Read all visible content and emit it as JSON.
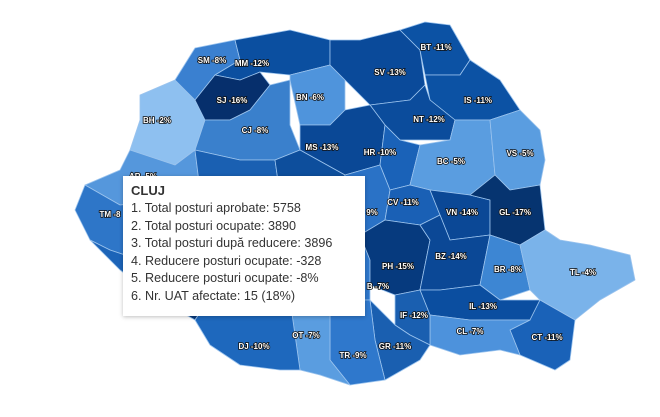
{
  "map": {
    "counties": [
      {
        "code": "BH",
        "label": "BH -2%",
        "color": "#8ec0f0"
      },
      {
        "code": "SM",
        "label": "SM -8%",
        "color": "#3a80d0"
      },
      {
        "code": "MM",
        "label": "MM -12%",
        "color": "#0b4fa0"
      },
      {
        "code": "SJ",
        "label": "SJ -16%",
        "color": "#062f6c"
      },
      {
        "code": "CJ",
        "label": "CJ -8%",
        "color": "#3a80cc"
      },
      {
        "code": "BN",
        "label": "BN -6%",
        "color": "#4f94dc"
      },
      {
        "code": "SV",
        "label": "SV -13%",
        "color": "#0a4a9a"
      },
      {
        "code": "BT",
        "label": "BT -11%",
        "color": "#0c52a4"
      },
      {
        "code": "IS",
        "label": "IS -11%",
        "color": "#0c52a4"
      },
      {
        "code": "NT",
        "label": "NT -12%",
        "color": "#0b4c9c"
      },
      {
        "code": "MS",
        "label": "MS -13%",
        "color": "#0a4896"
      },
      {
        "code": "HR",
        "label": "HR -10%",
        "color": "#1a62b8"
      },
      {
        "code": "BC",
        "label": "BC -5%",
        "color": "#5a9de0"
      },
      {
        "code": "VS",
        "label": "VS -5%",
        "color": "#5a9de0"
      },
      {
        "code": "AR",
        "label": "AR -5%",
        "color": "#5597dc"
      },
      {
        "code": "TM",
        "label": "TM -8",
        "color": "#2e76c8"
      },
      {
        "code": "HD",
        "label": "",
        "color": "#2a70c2"
      },
      {
        "code": "AB",
        "label": "",
        "color": "#1a60b2"
      },
      {
        "code": "SB",
        "label": "",
        "color": "#0d4e9c"
      },
      {
        "code": "BV",
        "label": "9%",
        "color": "#2a72c6"
      },
      {
        "code": "CV",
        "label": "CV -11%",
        "color": "#1a60b5"
      },
      {
        "code": "VN",
        "label": "VN -14%",
        "color": "#0b4896"
      },
      {
        "code": "GL",
        "label": "GL -17%",
        "color": "#063470"
      },
      {
        "code": "CS",
        "label": "",
        "color": "#1c64b8"
      },
      {
        "code": "MH",
        "label": "",
        "color": "#083c80"
      },
      {
        "code": "GJ",
        "label": "",
        "color": "#1a60b2"
      },
      {
        "code": "VL",
        "label": "",
        "color": "#0d4e9c"
      },
      {
        "code": "AG",
        "label": "",
        "color": "#083e84"
      },
      {
        "code": "DB",
        "label": "B -7%",
        "color": "#2f78cc"
      },
      {
        "code": "PH",
        "label": "PH -15%",
        "color": "#063a7e"
      },
      {
        "code": "BZ",
        "label": "BZ -14%",
        "color": "#0b4896"
      },
      {
        "code": "BR",
        "label": "BR -8%",
        "color": "#3d86d3"
      },
      {
        "code": "TL",
        "label": "TL -4%",
        "color": "#7ab3ea"
      },
      {
        "code": "IL",
        "label": "IL -13%",
        "color": "#0b4ea0"
      },
      {
        "code": "CT",
        "label": "CT -11%",
        "color": "#1a62b8"
      },
      {
        "code": "CL",
        "label": "CL -7%",
        "color": "#4d92dc"
      },
      {
        "code": "IF",
        "label": "IF -12%",
        "color": "#1a5fb0"
      },
      {
        "code": "GR",
        "label": "GR -11%",
        "color": "#1a5fb0"
      },
      {
        "code": "TR",
        "label": "TR -9%",
        "color": "#2f78cc"
      },
      {
        "code": "OT",
        "label": "OT -7%",
        "color": "#5a9de0"
      },
      {
        "code": "DJ",
        "label": "DJ -10%",
        "color": "#1e68bd"
      }
    ]
  },
  "tooltip": {
    "title": "CLUJ",
    "lines": [
      "1. Total posturi aprobate: 5758",
      "2. Total posturi ocupate: 3890",
      "3. Total posturi după reducere: 3896",
      "4. Reducere posturi ocupate: -328",
      "5. Reducere posturi ocupate: -8%",
      "6. Nr. UAT afectate: 15 (18%)"
    ]
  }
}
